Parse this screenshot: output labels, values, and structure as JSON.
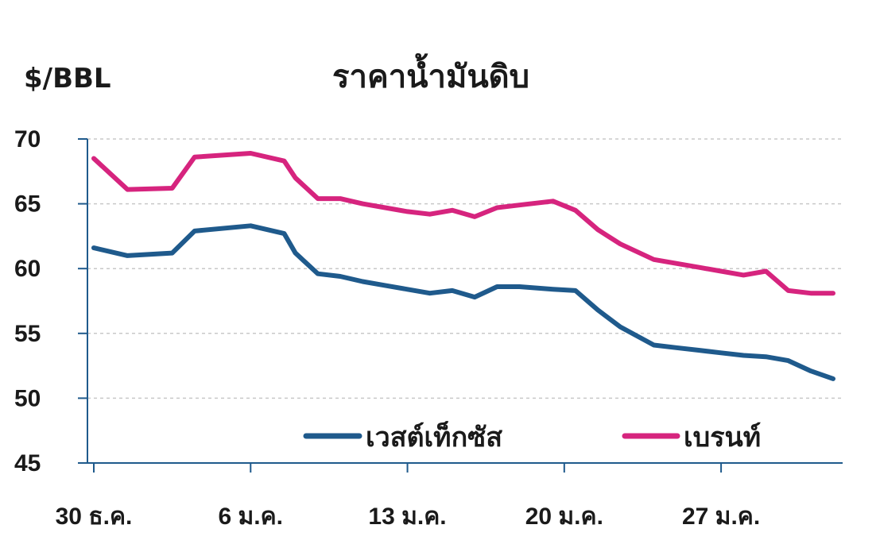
{
  "chart_data": {
    "type": "line",
    "title": "ราคาน้ำมันดิบ",
    "ylabel": "$/BBL",
    "xlabel": "",
    "ylim": [
      45,
      70
    ],
    "yticks": [
      45,
      50,
      55,
      60,
      65,
      70
    ],
    "ytick_labels": [
      "45",
      "50",
      "55",
      "60",
      "65",
      "70"
    ],
    "grid": "horizontal-dashed",
    "x_tick_labels": [
      "30 ธ.ค.",
      "6 ม.ค.",
      "13 ม.ค.",
      "20 ม.ค.",
      "27 ม.ค."
    ],
    "x_tick_index": [
      0,
      7,
      14,
      21,
      28
    ],
    "x": [
      0,
      1.5,
      3.5,
      4.5,
      7,
      8.5,
      9,
      10,
      11,
      12,
      13,
      14,
      15,
      16,
      17,
      18,
      19,
      20.5,
      21.5,
      22.5,
      23.5,
      25,
      26,
      27,
      28,
      29,
      30,
      31,
      32,
      33
    ],
    "series": [
      {
        "name": "เวสต์เท็กซัส",
        "color": "#1f5a8c",
        "values": [
          61.6,
          61.0,
          61.2,
          62.9,
          63.3,
          62.7,
          61.2,
          59.6,
          59.4,
          59.0,
          58.7,
          58.4,
          58.1,
          58.3,
          57.8,
          58.6,
          58.6,
          58.4,
          58.3,
          56.8,
          55.5,
          54.1,
          53.9,
          53.7,
          53.5,
          53.3,
          53.2,
          52.9,
          52.1,
          51.5
        ]
      },
      {
        "name": "เบรนท์",
        "color": "#d6247e",
        "values": [
          68.5,
          66.1,
          66.2,
          68.6,
          68.9,
          68.3,
          67.0,
          65.4,
          65.4,
          65.0,
          64.7,
          64.4,
          64.2,
          64.5,
          64.0,
          64.7,
          64.9,
          65.2,
          64.5,
          63.0,
          61.9,
          60.7,
          60.4,
          60.1,
          59.8,
          59.5,
          59.8,
          58.3,
          58.1,
          58.1
        ]
      }
    ],
    "legend": "bottom"
  }
}
